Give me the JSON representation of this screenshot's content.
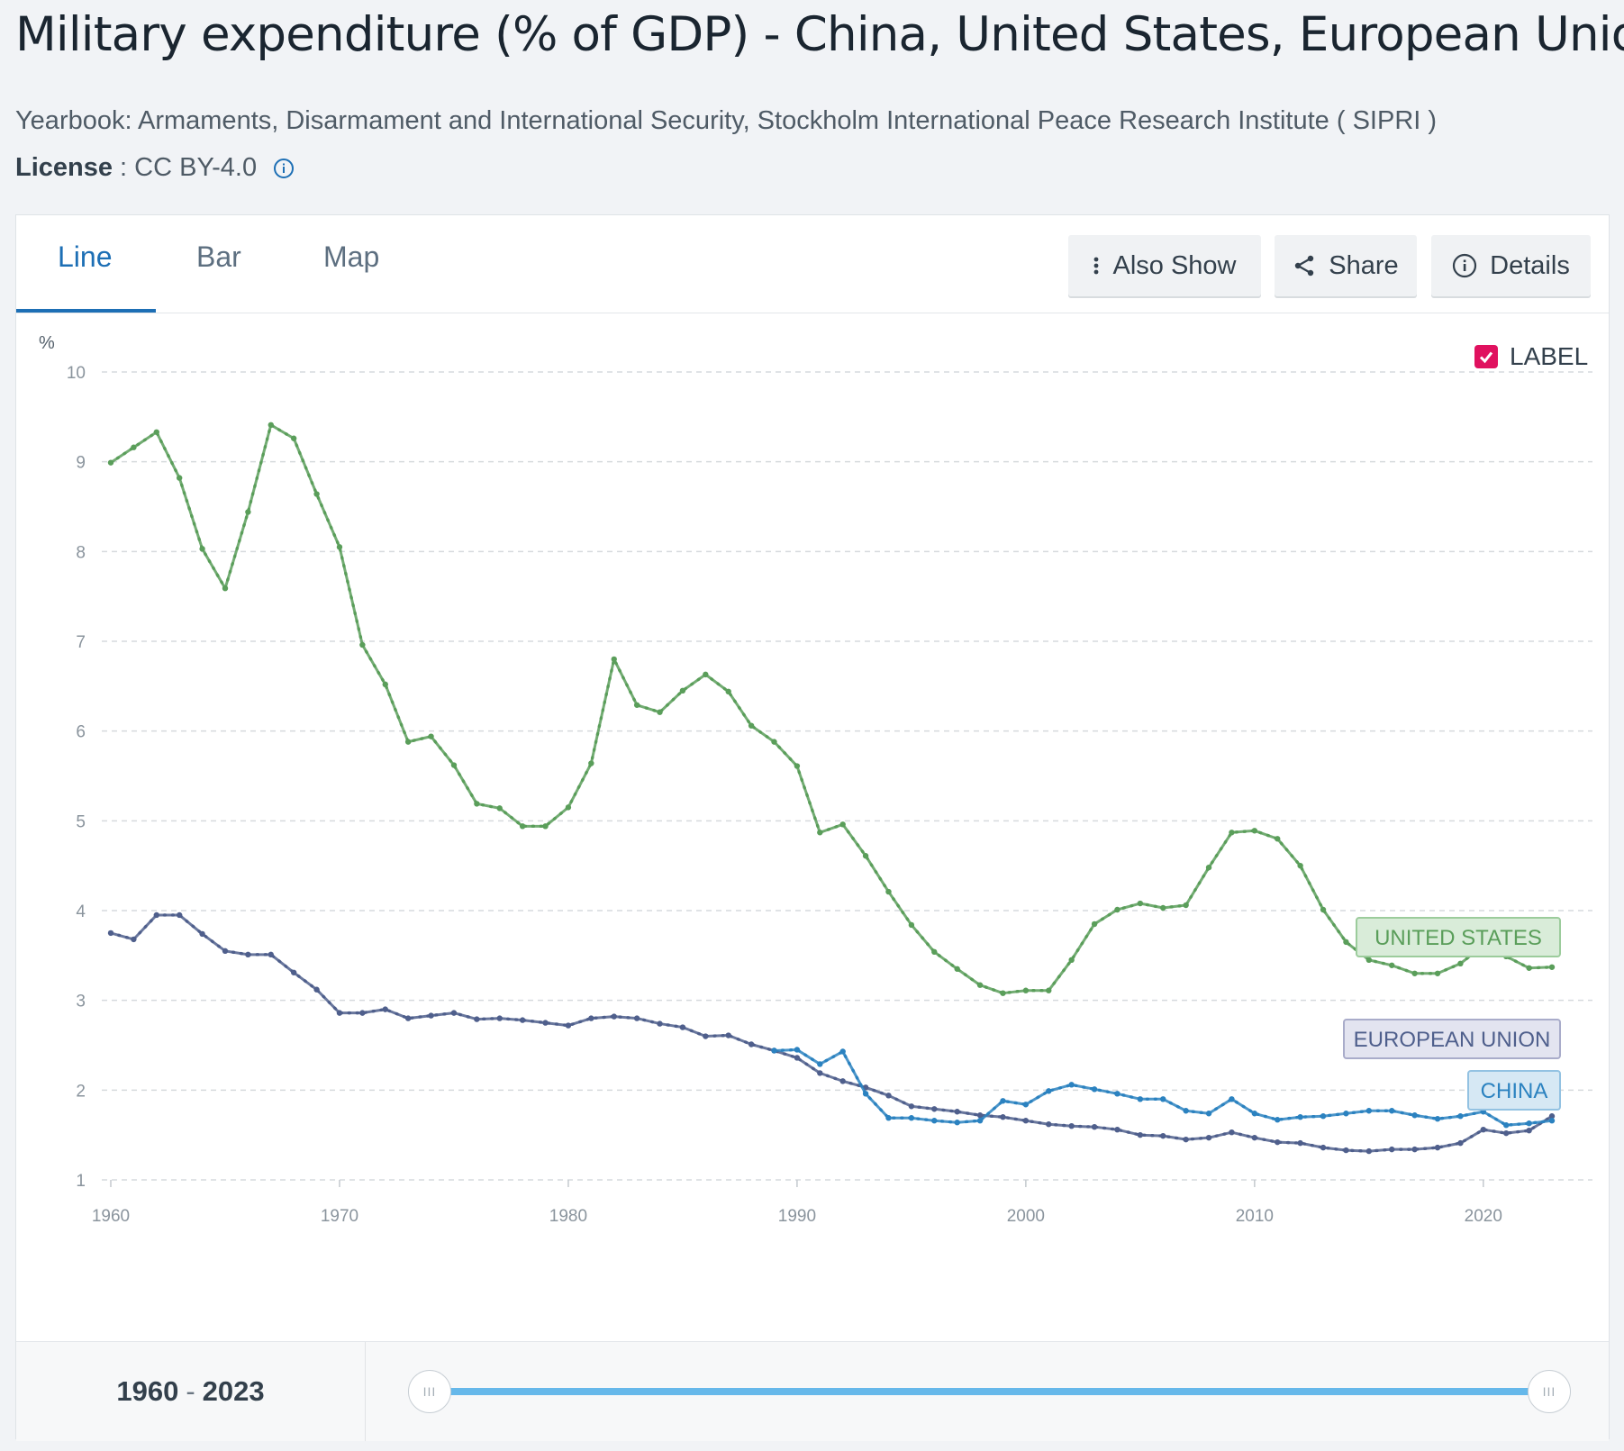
{
  "header": {
    "title": "Military expenditure (% of GDP) - China, United States, European Union",
    "source": "Yearbook: Armaments, Disarmament and International Security, Stockholm International Peace Research Institute ( SIPRI )",
    "license_label": "License",
    "license_sep": " : ",
    "license_value": "CC BY-4.0"
  },
  "tabs": [
    {
      "label": "Line",
      "active": true
    },
    {
      "label": "Bar",
      "active": false
    },
    {
      "label": "Map",
      "active": false
    }
  ],
  "toolbar": {
    "also_show": "Also Show",
    "share": "Share",
    "details": "Details"
  },
  "label_toggle": "LABEL",
  "footer": {
    "range_start": "1960",
    "range_sep": "-",
    "range_end": "2023",
    "handle_glyph": "III"
  },
  "chart_data": {
    "type": "line",
    "title": "Military expenditure (% of GDP) - China, United States, European Union",
    "ylabel": "%",
    "xlabel": "",
    "ylim": [
      1,
      10
    ],
    "xlim": [
      1960,
      2023
    ],
    "yticks": [
      1,
      2,
      3,
      4,
      5,
      6,
      7,
      8,
      9,
      10
    ],
    "xticks": [
      1960,
      1970,
      1980,
      1990,
      2000,
      2010,
      2020
    ],
    "grid": true,
    "series": [
      {
        "name": "United States",
        "label": "UNITED STATES",
        "color": "#5a9e5a",
        "start": 1960,
        "values": [
          8.99,
          9.16,
          9.33,
          8.82,
          8.03,
          7.59,
          8.44,
          9.41,
          9.26,
          8.64,
          8.05,
          6.96,
          6.52,
          5.88,
          5.94,
          5.62,
          5.19,
          5.14,
          4.94,
          4.94,
          5.15,
          5.64,
          6.8,
          6.29,
          6.21,
          6.45,
          6.63,
          6.44,
          6.06,
          5.88,
          5.61,
          4.87,
          4.96,
          4.61,
          4.21,
          3.84,
          3.54,
          3.35,
          3.17,
          3.08,
          3.11,
          3.11,
          3.45,
          3.85,
          4.01,
          4.08,
          4.03,
          4.06,
          4.48,
          4.87,
          4.89,
          4.8,
          4.5,
          4.01,
          3.65,
          3.45,
          3.39,
          3.3,
          3.3,
          3.41,
          3.61,
          3.49,
          3.36,
          3.37
        ]
      },
      {
        "name": "European Union",
        "label": "EUROPEAN UNION",
        "color": "#4f5f8c",
        "start": 1960,
        "values": [
          3.75,
          3.68,
          3.95,
          3.95,
          3.74,
          3.55,
          3.51,
          3.51,
          3.31,
          3.12,
          2.86,
          2.86,
          2.9,
          2.8,
          2.83,
          2.86,
          2.79,
          2.8,
          2.78,
          2.75,
          2.72,
          2.8,
          2.82,
          2.8,
          2.74,
          2.7,
          2.6,
          2.61,
          2.51,
          2.44,
          2.36,
          2.19,
          2.1,
          2.03,
          1.94,
          1.82,
          1.79,
          1.76,
          1.72,
          1.7,
          1.66,
          1.62,
          1.6,
          1.59,
          1.56,
          1.5,
          1.49,
          1.45,
          1.47,
          1.53,
          1.47,
          1.42,
          1.41,
          1.36,
          1.33,
          1.32,
          1.34,
          1.34,
          1.36,
          1.41,
          1.56,
          1.52,
          1.55,
          1.71
        ]
      },
      {
        "name": "China",
        "label": "CHINA",
        "color": "#2b82c0",
        "start": 1989,
        "values": [
          2.44,
          2.45,
          2.29,
          2.43,
          1.96,
          1.69,
          1.69,
          1.66,
          1.64,
          1.66,
          1.88,
          1.84,
          1.99,
          2.06,
          2.01,
          1.96,
          1.9,
          1.9,
          1.77,
          1.74,
          1.9,
          1.74,
          1.67,
          1.7,
          1.71,
          1.74,
          1.77,
          1.77,
          1.72,
          1.68,
          1.71,
          1.76,
          1.61,
          1.63,
          1.66
        ]
      }
    ]
  }
}
